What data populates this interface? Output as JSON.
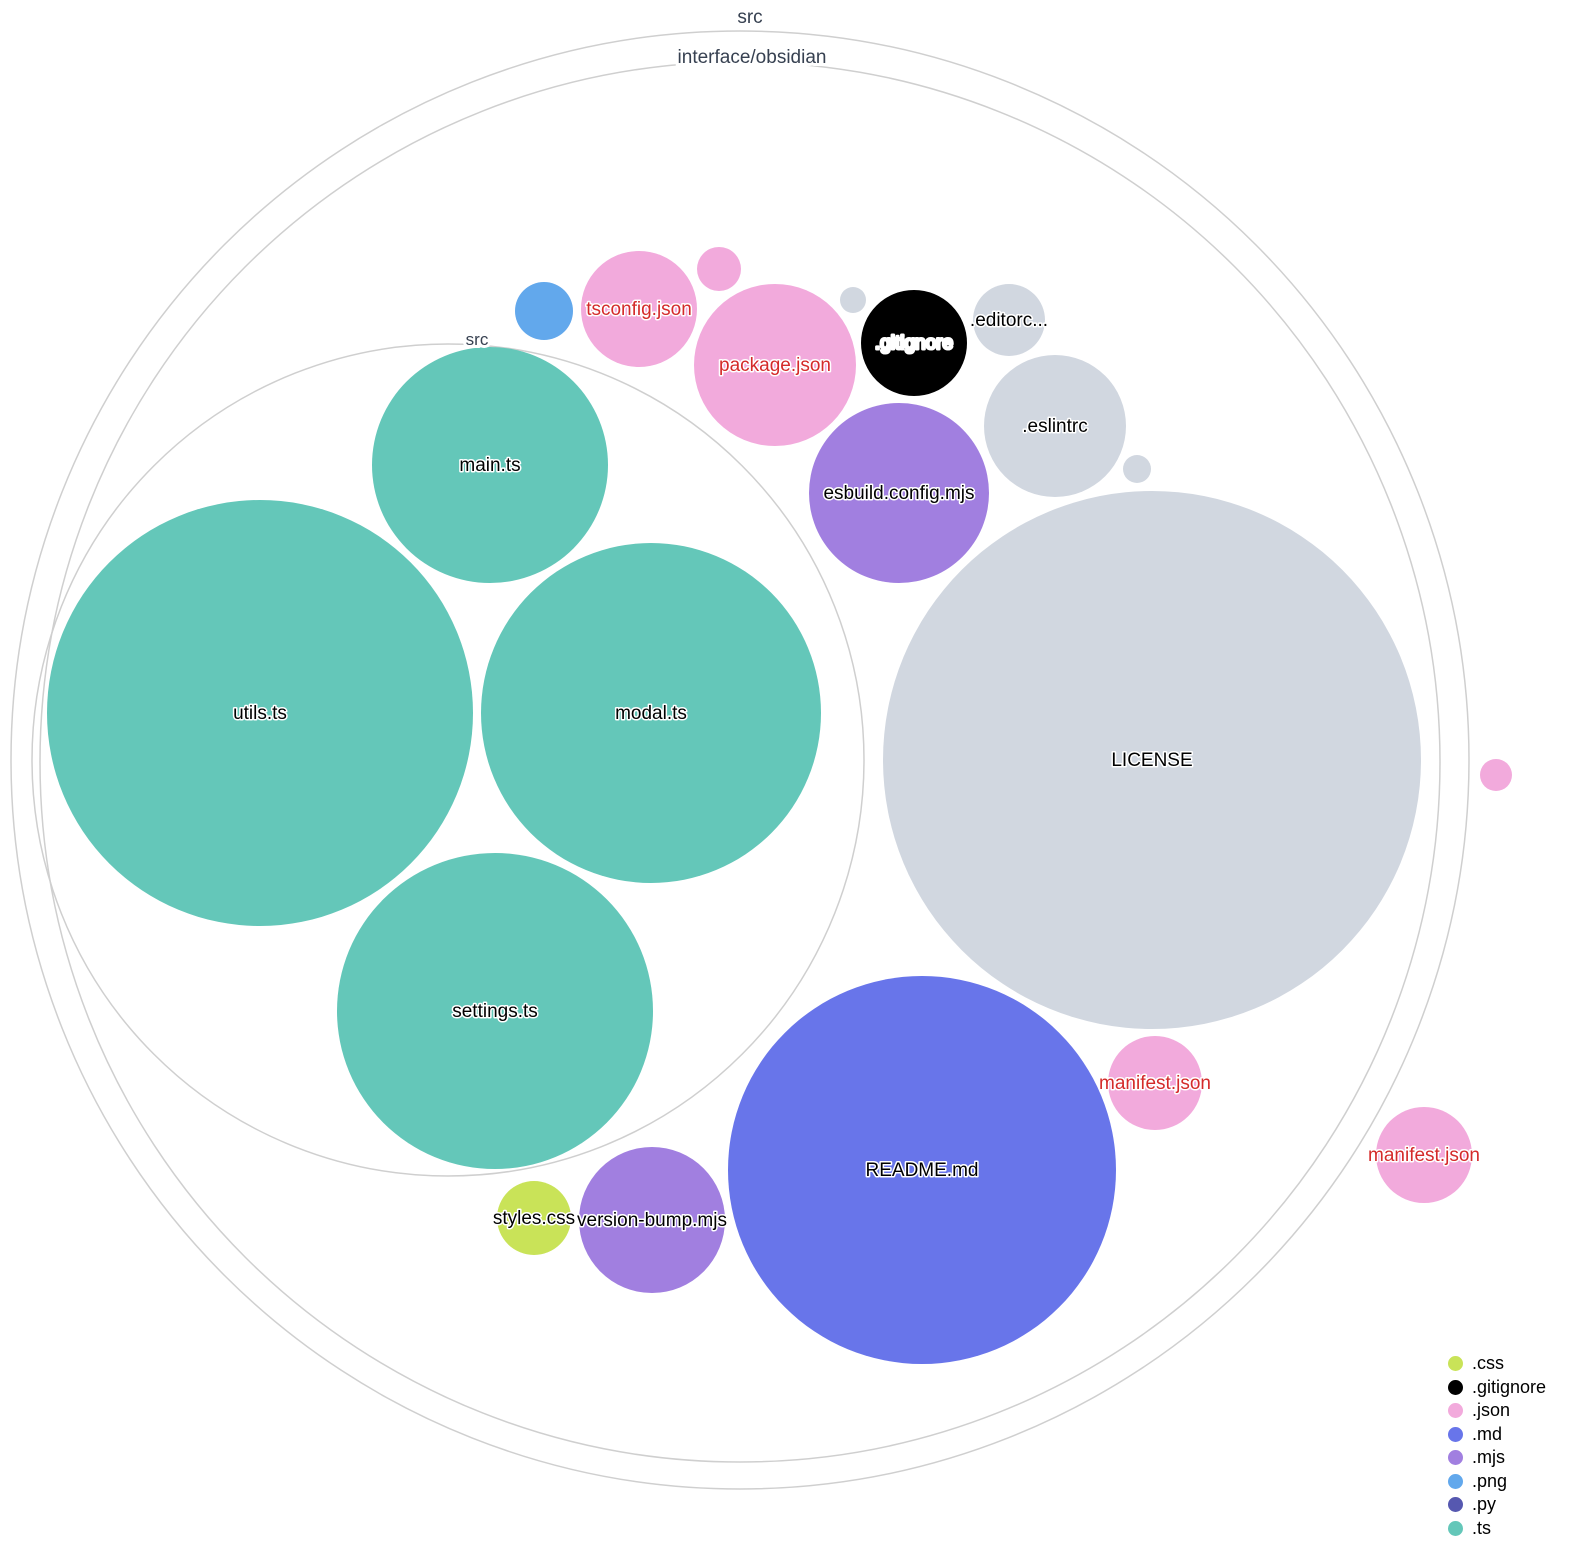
{
  "folders": [
    {
      "name": "src"
    },
    {
      "name": "interface/obsidian"
    },
    {
      "name": "src"
    }
  ],
  "files": [
    {
      "name": "utils.ts",
      "ext": ".ts"
    },
    {
      "name": "modal.ts",
      "ext": ".ts"
    },
    {
      "name": "main.ts",
      "ext": ".ts"
    },
    {
      "name": "settings.ts",
      "ext": ".ts"
    },
    {
      "name": "LICENSE",
      "ext": ""
    },
    {
      "name": "README.md",
      "ext": ".md"
    },
    {
      "name": "esbuild.config.mjs",
      "ext": ".mjs"
    },
    {
      "name": "version-bump.mjs",
      "ext": ".mjs"
    },
    {
      "name": "styles.css",
      "ext": ".css"
    },
    {
      "name": "package.json",
      "ext": ".json"
    },
    {
      "name": "tsconfig.json",
      "ext": ".json"
    },
    {
      "name": "",
      "ext": ".json"
    },
    {
      "name": "",
      "ext": ".png"
    },
    {
      "name": "",
      "ext": ""
    },
    {
      "name": ".gitignore",
      "ext": ".gitignore"
    },
    {
      "name": ".editorc...",
      "ext": ""
    },
    {
      "name": ".eslintrc",
      "ext": ""
    },
    {
      "name": "",
      "ext": ""
    },
    {
      "name": "manifest.json",
      "ext": ".json"
    },
    {
      "name": "manifest.json",
      "ext": ".json"
    },
    {
      "name": "",
      "ext": ".json"
    }
  ],
  "colors": {
    ".css": "#c9e358",
    ".gitignore": "#000000",
    ".json": "#f2aadc",
    ".md": "#6875ea",
    ".mjs": "#a17fe0",
    ".png": "#62a8ec",
    ".py": "#5658b0",
    ".ts": "#64c7b9",
    "default": "#d1d7e0",
    "json_label": "#d42a2a"
  },
  "legend": [
    {
      "label": ".css",
      "color": "#c9e358"
    },
    {
      "label": ".gitignore",
      "color": "#000000"
    },
    {
      "label": ".json",
      "color": "#f2aadc"
    },
    {
      "label": ".md",
      "color": "#6875ea"
    },
    {
      "label": ".mjs",
      "color": "#a17fe0"
    },
    {
      "label": ".png",
      "color": "#62a8ec"
    },
    {
      "label": ".py",
      "color": "#5658b0"
    },
    {
      "label": ".ts",
      "color": "#64c7b9"
    }
  ]
}
